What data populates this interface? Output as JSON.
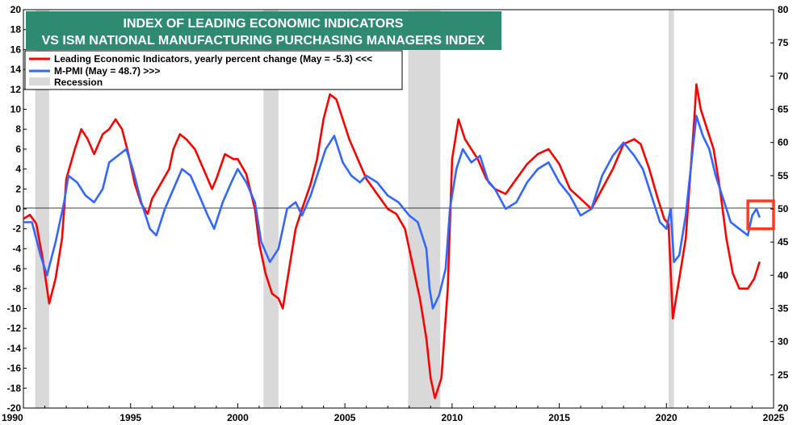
{
  "chart_data": {
    "type": "line",
    "title": "INDEX OF LEADING  ECONOMIC  INDICATORS",
    "subtitle": "VS ISM NATIONAL MANUFACTURING PURCHASING MANAGERS INDEX",
    "title_bg": "#2e8b72",
    "xlim": [
      1990,
      2025
    ],
    "x_ticks": [
      "1990",
      "1995",
      "2000",
      "2005",
      "2010",
      "2015",
      "2020",
      "2025"
    ],
    "y_left": {
      "min": -20,
      "max": 20,
      "ticks": [
        "20",
        "18",
        "16",
        "14",
        "12",
        "10",
        "8",
        "6",
        "4",
        "2",
        "0",
        "-2",
        "-4",
        "-6",
        "-8",
        "-10",
        "-12",
        "-14",
        "-16",
        "-18",
        "-20"
      ]
    },
    "y_right": {
      "min": 20,
      "max": 80,
      "ticks": [
        "80",
        "75",
        "70",
        "65",
        "60",
        "55",
        "50",
        "45",
        "40",
        "35",
        "30",
        "25",
        "20"
      ]
    },
    "legend": [
      {
        "label": "Leading Economic Indicators, yearly percent change (May = -5.3) <<<",
        "color": "#ff0000",
        "kind": "line"
      },
      {
        "label": "M-PMI (May = 48.7) >>>",
        "color": "#3366ff",
        "kind": "line"
      },
      {
        "label": "Recession",
        "color": "#d9d9d9",
        "kind": "box"
      }
    ],
    "recessions": [
      [
        1990.55,
        1991.2
      ],
      [
        2001.2,
        2001.9
      ],
      [
        2007.95,
        2009.45
      ],
      [
        2020.1,
        2020.35
      ]
    ],
    "highlight_box": {
      "x": [
        2023.8,
        2025.0
      ],
      "y": [
        -2.0,
        0.8
      ],
      "color": "#ff3b1f"
    },
    "series": [
      {
        "name": "Leading Economic Indicators, yearly percent change",
        "axis": "left",
        "color": "#ff0000",
        "x": [
          1990.0,
          1990.3,
          1990.6,
          1990.9,
          1991.2,
          1991.5,
          1991.8,
          1992.0,
          1992.4,
          1992.7,
          1993.0,
          1993.3,
          1993.7,
          1994.0,
          1994.3,
          1994.6,
          1994.9,
          1995.2,
          1995.5,
          1995.8,
          1996.0,
          1996.4,
          1996.8,
          1997.0,
          1997.3,
          1997.6,
          1998.0,
          1998.4,
          1998.8,
          1999.0,
          1999.4,
          1999.8,
          2000.0,
          2000.4,
          2000.8,
          2001.0,
          2001.3,
          2001.6,
          2001.9,
          2002.1,
          2002.4,
          2002.7,
          2003.0,
          2003.4,
          2003.7,
          2004.0,
          2004.3,
          2004.6,
          2004.9,
          2005.2,
          2005.6,
          2006.0,
          2006.5,
          2007.0,
          2007.4,
          2007.8,
          2008.1,
          2008.5,
          2008.8,
          2009.0,
          2009.2,
          2009.5,
          2009.8,
          2010.0,
          2010.3,
          2010.6,
          2010.9,
          2011.2,
          2011.6,
          2012.0,
          2012.5,
          2013.0,
          2013.5,
          2014.0,
          2014.5,
          2015.0,
          2015.5,
          2016.0,
          2016.5,
          2017.0,
          2017.5,
          2018.0,
          2018.5,
          2018.8,
          2019.2,
          2019.6,
          2019.9,
          2020.1,
          2020.3,
          2020.6,
          2020.9,
          2021.1,
          2021.3,
          2021.4,
          2021.6,
          2021.9,
          2022.2,
          2022.5,
          2022.8,
          2023.1,
          2023.4,
          2023.8,
          2024.1,
          2024.35
        ],
        "values": [
          -1.0,
          -0.6,
          -1.5,
          -5.0,
          -9.5,
          -7.0,
          -3.0,
          3.0,
          6.0,
          8.0,
          7.0,
          5.5,
          7.5,
          8.0,
          9.0,
          8.0,
          5.5,
          2.5,
          0.5,
          -0.5,
          1.0,
          2.5,
          4.0,
          6.0,
          7.5,
          7.0,
          6.0,
          4.0,
          2.0,
          3.0,
          5.5,
          5.0,
          5.0,
          3.5,
          0.0,
          -3.5,
          -6.5,
          -8.5,
          -9.0,
          -10.0,
          -6.0,
          -2.0,
          0.0,
          2.5,
          5.0,
          9.0,
          11.5,
          11.0,
          9.0,
          7.0,
          5.0,
          3.0,
          1.5,
          0.0,
          -0.5,
          -2.0,
          -5.0,
          -9.0,
          -13.0,
          -17.0,
          -19.0,
          -17.0,
          -8.0,
          5.0,
          9.0,
          7.0,
          6.0,
          5.0,
          3.0,
          2.0,
          1.5,
          3.0,
          4.5,
          5.5,
          6.0,
          4.5,
          2.0,
          1.0,
          0.0,
          2.0,
          4.0,
          6.5,
          7.0,
          6.5,
          4.0,
          1.0,
          -1.0,
          -1.5,
          -11.0,
          -7.0,
          -3.0,
          3.0,
          9.0,
          12.5,
          10.0,
          8.0,
          6.0,
          2.0,
          -3.0,
          -6.5,
          -8.0,
          -8.0,
          -7.0,
          -5.3
        ]
      },
      {
        "name": "M-PMI",
        "axis": "right",
        "color": "#3366ff",
        "x": [
          1990.0,
          1990.4,
          1990.8,
          1991.1,
          1991.5,
          1991.9,
          1992.1,
          1992.5,
          1992.9,
          1993.3,
          1993.7,
          1994.0,
          1994.4,
          1994.8,
          1995.1,
          1995.5,
          1995.9,
          1996.2,
          1996.6,
          1997.0,
          1997.4,
          1997.8,
          1998.2,
          1998.6,
          1998.9,
          1999.3,
          1999.7,
          2000.0,
          2000.4,
          2000.8,
          2001.1,
          2001.5,
          2001.9,
          2002.3,
          2002.7,
          2003.0,
          2003.4,
          2003.8,
          2004.1,
          2004.5,
          2004.9,
          2005.3,
          2005.7,
          2006.0,
          2006.5,
          2007.0,
          2007.5,
          2008.0,
          2008.4,
          2008.8,
          2008.95,
          2009.1,
          2009.4,
          2009.7,
          2009.9,
          2010.2,
          2010.5,
          2010.9,
          2011.3,
          2011.7,
          2012.0,
          2012.5,
          2013.0,
          2013.5,
          2014.0,
          2014.5,
          2015.0,
          2015.5,
          2016.0,
          2016.5,
          2017.0,
          2017.5,
          2018.0,
          2018.5,
          2018.9,
          2019.3,
          2019.7,
          2020.0,
          2020.2,
          2020.35,
          2020.6,
          2020.9,
          2021.2,
          2021.4,
          2021.7,
          2022.0,
          2022.3,
          2022.7,
          2023.0,
          2023.4,
          2023.8,
          2024.0,
          2024.2,
          2024.35
        ],
        "values": [
          48,
          48,
          43,
          40,
          45,
          51,
          55,
          54,
          52,
          51,
          53,
          57,
          58,
          59,
          56,
          51,
          47,
          46,
          50,
          53,
          56,
          55,
          52,
          49,
          47,
          51,
          54,
          56,
          54,
          51,
          45,
          42,
          44,
          50,
          51,
          49,
          52,
          56,
          59,
          61,
          57,
          55,
          54,
          55,
          54,
          52,
          51,
          49,
          48,
          44,
          38,
          35,
          37,
          41,
          50,
          56,
          59,
          57,
          58,
          54,
          53,
          50,
          51,
          54,
          56,
          57,
          54,
          52,
          49,
          50,
          55,
          58,
          60,
          58,
          56,
          52,
          48,
          47,
          50,
          42,
          43,
          49,
          58,
          64,
          61,
          59,
          55,
          51,
          48,
          47,
          46,
          49,
          50,
          48.7
        ]
      }
    ]
  }
}
